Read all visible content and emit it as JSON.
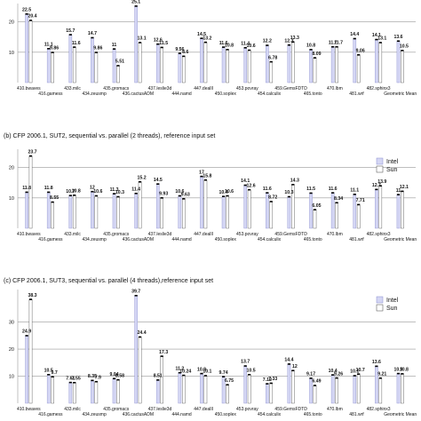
{
  "colors": {
    "intel": "#d4d6f4",
    "intel_stroke": "#8c8fcf",
    "sun": "#ffffff",
    "sun_stroke": "#444444",
    "grid": "#999999",
    "marker": "#000000"
  },
  "chart_data": [
    {
      "type": "bar",
      "title": "",
      "ylim": [
        0,
        26
      ],
      "ticks": [
        10,
        20
      ],
      "legend": [
        "Intel",
        "Sun"
      ],
      "categories": [
        "410.bwaves",
        "416.gamess",
        "433.milc",
        "434.zeusmp",
        "435.gromacs",
        "436.cactusADM",
        "437.leslie3d",
        "444.namd",
        "447.dealII",
        "450.soplex",
        "453.povray",
        "454.calculix",
        "459.GemsFDTD",
        "465.tonto",
        "470.lbm",
        "481.wrf",
        "482.sphinx3",
        "Geometric Mean"
      ],
      "series": [
        {
          "name": "Intel",
          "values": [
            22.5,
            11.1,
            15.7,
            14.7,
            11,
            25.1,
            12.6,
            9.56,
            14.5,
            11.6,
            11.4,
            12.2,
            12.3,
            10.8,
            11.7,
            14.4,
            14.1,
            13.6
          ]
        },
        {
          "name": "Sun",
          "values": [
            20.4,
            9.86,
            11.6,
            9.86,
            5.51,
            13.1,
            11.5,
            8.6,
            13.2,
            10.8,
            10.6,
            6.78,
            13.3,
            8.09,
            11.7,
            9.06,
            13.1,
            10.5
          ]
        }
      ]
    },
    {
      "type": "bar",
      "title": "(b) CFP 2006.1, SUT2, sequential vs. parallel (2 threads), reference input set",
      "ylim": [
        0,
        26
      ],
      "ticks": [
        10,
        20
      ],
      "legend": [
        "Intel",
        "Sun"
      ],
      "categories": [
        "410.bwaves",
        "416.gamess",
        "433.milc",
        "434.zeusmp",
        "435.gromacs",
        "436.cactusADM",
        "437.leslie3d",
        "444.namd",
        "447.dealII",
        "450.soplex",
        "453.povray",
        "454.calculix",
        "459.GemsFDTD",
        "465.tonto",
        "470.lbm",
        "481.wrf",
        "482.sphinx3",
        "Geometric Mean"
      ],
      "series": [
        {
          "name": "Intel",
          "values": [
            11.8,
            11.8,
            10.7,
            12,
            11.3,
            11.4,
            14.5,
            10.6,
            17,
            10.4,
            14.1,
            11.6,
            10.3,
            11.5,
            11.6,
            11.1,
            12.7,
            11
          ]
        },
        {
          "name": "Sun",
          "values": [
            23.7,
            8.55,
            10.8,
            10.6,
            10.3,
            15.2,
            9.93,
            9.63,
            15.8,
            10.6,
            12.6,
            8.72,
            14.3,
            6.05,
            8.34,
            7.71,
            13.9,
            12.1
          ]
        }
      ]
    },
    {
      "type": "bar",
      "title": "(c) CFP 2006.1, SUT3, sequential vs. parallel (4 threads),reference input set",
      "ylim": [
        0,
        42
      ],
      "ticks": [
        10,
        20,
        30
      ],
      "legend": [
        "Intel",
        "Sun"
      ],
      "categories": [
        "410.bwaves",
        "416.gamess",
        "433.milc",
        "434.zeusmp",
        "435.gromacs",
        "436.cactusADM",
        "437.leslie3d",
        "444.namd",
        "447.dealII",
        "450.soplex",
        "453.povray",
        "454.calculix",
        "459.GemsFDTD",
        "465.tonto",
        "470.lbm",
        "481.wrf",
        "482.sphinx3",
        "Geometric Mean"
      ],
      "series": [
        {
          "name": "Intel",
          "values": [
            24.9,
            10.5,
            7.61,
            8.35,
            9.04,
            39.7,
            8.51,
            11.2,
            10.9,
            9.74,
            13.7,
            7.12,
            14.4,
            9.17,
            10.4,
            10.1,
            13.6,
            10.9
          ]
        },
        {
          "name": "Sun",
          "values": [
            38.3,
            9.7,
            7.55,
            7.9,
            8.58,
            24.4,
            17.3,
            10.24,
            10.1,
            6.75,
            10.5,
            7.33,
            12,
            6.49,
            9.26,
            10.7,
            9.21,
            10.8
          ]
        }
      ]
    }
  ]
}
